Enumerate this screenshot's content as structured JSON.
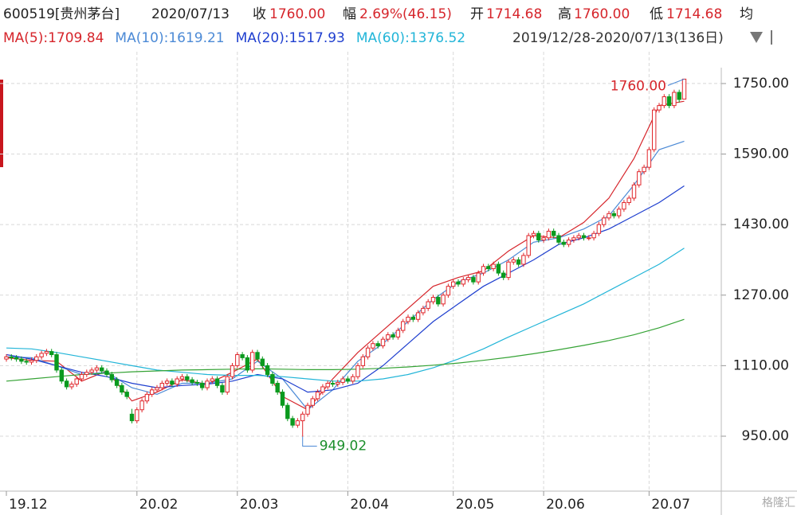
{
  "header": {
    "stock": "600519[贵州茅台]",
    "date": "2020/07/13",
    "close_label": "收",
    "close": "1760.00",
    "change_label": "幅",
    "change": "2.69%(46.15)",
    "open_label": "开",
    "open": "1714.68",
    "high_label": "高",
    "high": "1760.00",
    "low_label": "低",
    "low": "1714.68",
    "avg_label": "均"
  },
  "range_text": "2019/12/28-2020/07/13(136日)",
  "watermark": "格隆汇",
  "chart_data": {
    "type": "candlestick",
    "up_color": "#e0262b",
    "down_color": "#0a9a1e",
    "ylim": [
      829,
      1786
    ],
    "yticks": [
      {
        "value": 950,
        "label": "950.00"
      },
      {
        "value": 1110,
        "label": "1110.00"
      },
      {
        "value": 1270,
        "label": "1270.00"
      },
      {
        "value": 1430,
        "label": "1430.00"
      },
      {
        "value": 1590,
        "label": "1590.00"
      },
      {
        "value": 1750,
        "label": "1750.00"
      }
    ],
    "grid": true,
    "categories": [
      "19.12",
      null,
      null,
      null,
      null,
      null,
      null,
      null,
      null,
      null,
      null,
      null,
      null,
      null,
      null,
      null,
      null,
      null,
      null,
      null,
      null,
      null,
      null,
      null,
      null,
      null,
      "20.02",
      null,
      null,
      null,
      null,
      null,
      null,
      null,
      null,
      null,
      null,
      null,
      null,
      null,
      null,
      null,
      null,
      null,
      null,
      null,
      "20.03",
      null,
      null,
      null,
      null,
      null,
      null,
      null,
      null,
      null,
      null,
      null,
      null,
      null,
      null,
      null,
      null,
      null,
      null,
      null,
      null,
      null,
      "20.04",
      null,
      null,
      null,
      null,
      null,
      null,
      null,
      null,
      null,
      null,
      null,
      null,
      null,
      null,
      null,
      null,
      null,
      null,
      null,
      null,
      "20.05",
      null,
      null,
      null,
      null,
      null,
      null,
      null,
      null,
      null,
      null,
      null,
      null,
      null,
      null,
      null,
      null,
      null,
      "20.06",
      null,
      null,
      null,
      null,
      null,
      null,
      null,
      null,
      null,
      null,
      null,
      null,
      null,
      null,
      null,
      null,
      null,
      null,
      null,
      null,
      "20.07",
      null,
      null,
      null,
      null,
      null,
      null,
      null
    ],
    "ohlc": [
      [
        1125,
        1136,
        1119,
        1130
      ],
      [
        1130,
        1136,
        1122,
        1128
      ],
      [
        1128,
        1134,
        1119,
        1125
      ],
      [
        1125,
        1131,
        1114,
        1120
      ],
      [
        1120,
        1126,
        1112,
        1118
      ],
      [
        1118,
        1128,
        1112,
        1122
      ],
      [
        1122,
        1136,
        1116,
        1130
      ],
      [
        1130,
        1144,
        1124,
        1138
      ],
      [
        1138,
        1148,
        1132,
        1142
      ],
      [
        1142,
        1148,
        1129,
        1135
      ],
      [
        1135,
        1141,
        1094,
        1100
      ],
      [
        1100,
        1106,
        1069,
        1075
      ],
      [
        1075,
        1081,
        1056,
        1062
      ],
      [
        1062,
        1074,
        1056,
        1068
      ],
      [
        1068,
        1086,
        1062,
        1080
      ],
      [
        1080,
        1096,
        1074,
        1090
      ],
      [
        1090,
        1101,
        1084,
        1095
      ],
      [
        1095,
        1106,
        1089,
        1100
      ],
      [
        1100,
        1111,
        1094,
        1105
      ],
      [
        1105,
        1111,
        1092,
        1098
      ],
      [
        1098,
        1104,
        1084,
        1090
      ],
      [
        1090,
        1096,
        1072,
        1078
      ],
      [
        1078,
        1084,
        1059,
        1065
      ],
      [
        1065,
        1071,
        1044,
        1050
      ],
      [
        1050,
        1056,
        1034,
        1040
      ],
      [
        1000,
        1012,
        979,
        985
      ],
      [
        985,
        1016,
        979,
        1010
      ],
      [
        1010,
        1036,
        1004,
        1030
      ],
      [
        1030,
        1051,
        1024,
        1045
      ],
      [
        1045,
        1061,
        1039,
        1055
      ],
      [
        1055,
        1066,
        1049,
        1060
      ],
      [
        1060,
        1076,
        1054,
        1070
      ],
      [
        1070,
        1081,
        1064,
        1075
      ],
      [
        1075,
        1081,
        1062,
        1068
      ],
      [
        1068,
        1086,
        1062,
        1080
      ],
      [
        1080,
        1091,
        1074,
        1085
      ],
      [
        1085,
        1091,
        1072,
        1078
      ],
      [
        1078,
        1084,
        1066,
        1072
      ],
      [
        1072,
        1078,
        1064,
        1070
      ],
      [
        1070,
        1076,
        1054,
        1060
      ],
      [
        1060,
        1081,
        1054,
        1075
      ],
      [
        1075,
        1086,
        1069,
        1080
      ],
      [
        1080,
        1086,
        1059,
        1065
      ],
      [
        1065,
        1071,
        1044,
        1050
      ],
      [
        1050,
        1091,
        1044,
        1085
      ],
      [
        1085,
        1116,
        1079,
        1110
      ],
      [
        1110,
        1141,
        1104,
        1135
      ],
      [
        1135,
        1141,
        1122,
        1128
      ],
      [
        1128,
        1134,
        1094,
        1100
      ],
      [
        1100,
        1146,
        1094,
        1140
      ],
      [
        1140,
        1146,
        1119,
        1125
      ],
      [
        1125,
        1131,
        1104,
        1110
      ],
      [
        1110,
        1116,
        1084,
        1090
      ],
      [
        1090,
        1096,
        1064,
        1070
      ],
      [
        1070,
        1076,
        1044,
        1050
      ],
      [
        1050,
        1056,
        1014,
        1020
      ],
      [
        1020,
        1026,
        984,
        990
      ],
      [
        990,
        996,
        969,
        975
      ],
      [
        975,
        991,
        969,
        985
      ],
      [
        985,
        1006,
        949.02,
        1000
      ],
      [
        1000,
        1026,
        994,
        1020
      ],
      [
        1020,
        1041,
        1014,
        1035
      ],
      [
        1035,
        1056,
        1029,
        1050
      ],
      [
        1050,
        1068,
        1044,
        1062
      ],
      [
        1062,
        1076,
        1056,
        1070
      ],
      [
        1070,
        1076,
        1062,
        1068
      ],
      [
        1068,
        1078,
        1062,
        1072
      ],
      [
        1072,
        1086,
        1066,
        1080
      ],
      [
        1080,
        1086,
        1069,
        1075
      ],
      [
        1075,
        1091,
        1069,
        1085
      ],
      [
        1085,
        1116,
        1079,
        1110
      ],
      [
        1110,
        1136,
        1104,
        1130
      ],
      [
        1130,
        1156,
        1124,
        1150
      ],
      [
        1150,
        1166,
        1144,
        1160
      ],
      [
        1160,
        1166,
        1149,
        1155
      ],
      [
        1155,
        1176,
        1149,
        1170
      ],
      [
        1170,
        1186,
        1164,
        1180
      ],
      [
        1180,
        1186,
        1169,
        1175
      ],
      [
        1175,
        1196,
        1169,
        1190
      ],
      [
        1190,
        1216,
        1184,
        1210
      ],
      [
        1210,
        1226,
        1204,
        1220
      ],
      [
        1220,
        1226,
        1209,
        1215
      ],
      [
        1215,
        1236,
        1209,
        1230
      ],
      [
        1230,
        1246,
        1224,
        1240
      ],
      [
        1240,
        1261,
        1234,
        1255
      ],
      [
        1255,
        1271,
        1249,
        1265
      ],
      [
        1265,
        1271,
        1244,
        1250
      ],
      [
        1250,
        1276,
        1244,
        1270
      ],
      [
        1270,
        1296,
        1264,
        1290
      ],
      [
        1290,
        1306,
        1284,
        1300
      ],
      [
        1300,
        1306,
        1289,
        1295
      ],
      [
        1295,
        1311,
        1289,
        1305
      ],
      [
        1305,
        1316,
        1299,
        1310
      ],
      [
        1310,
        1316,
        1294,
        1300
      ],
      [
        1300,
        1326,
        1294,
        1320
      ],
      [
        1320,
        1341,
        1314,
        1335
      ],
      [
        1335,
        1341,
        1324,
        1330
      ],
      [
        1330,
        1346,
        1324,
        1340
      ],
      [
        1340,
        1346,
        1314,
        1320
      ],
      [
        1320,
        1326,
        1304,
        1310
      ],
      [
        1310,
        1351,
        1304,
        1345
      ],
      [
        1345,
        1356,
        1339,
        1350
      ],
      [
        1350,
        1356,
        1334,
        1340
      ],
      [
        1340,
        1366,
        1334,
        1360
      ],
      [
        1360,
        1411,
        1354,
        1405
      ],
      [
        1405,
        1416,
        1399,
        1410
      ],
      [
        1410,
        1416,
        1389,
        1395
      ],
      [
        1395,
        1406,
        1389,
        1400
      ],
      [
        1400,
        1421,
        1394,
        1415
      ],
      [
        1415,
        1421,
        1399,
        1405
      ],
      [
        1405,
        1411,
        1384,
        1390
      ],
      [
        1390,
        1396,
        1379,
        1385
      ],
      [
        1385,
        1401,
        1379,
        1395
      ],
      [
        1395,
        1406,
        1389,
        1400
      ],
      [
        1400,
        1411,
        1394,
        1405
      ],
      [
        1405,
        1411,
        1394,
        1400
      ],
      [
        1400,
        1406,
        1394,
        1400
      ],
      [
        1400,
        1416,
        1394,
        1410
      ],
      [
        1410,
        1436,
        1404,
        1430
      ],
      [
        1430,
        1451,
        1424,
        1445
      ],
      [
        1445,
        1461,
        1439,
        1455
      ],
      [
        1455,
        1461,
        1444,
        1450
      ],
      [
        1450,
        1471,
        1444,
        1465
      ],
      [
        1465,
        1486,
        1459,
        1480
      ],
      [
        1480,
        1496,
        1474,
        1490
      ],
      [
        1490,
        1526,
        1484,
        1520
      ],
      [
        1520,
        1556,
        1514,
        1550
      ],
      [
        1550,
        1566,
        1544,
        1560
      ],
      [
        1560,
        1606,
        1554,
        1600
      ],
      [
        1600,
        1696,
        1594,
        1690
      ],
      [
        1690,
        1706,
        1684,
        1700
      ],
      [
        1700,
        1726,
        1694,
        1720
      ],
      [
        1720,
        1726,
        1694,
        1700
      ],
      [
        1700,
        1736,
        1694,
        1730
      ],
      [
        1730,
        1736,
        1707,
        1713.85
      ],
      [
        1714.68,
        1760,
        1714.68,
        1760
      ]
    ],
    "series": [
      {
        "name": "MA(5):1709.84",
        "color": "#d6252b",
        "x": [
          0,
          5,
          10,
          15,
          20,
          25,
          30,
          35,
          40,
          45,
          50,
          55,
          60,
          65,
          70,
          75,
          80,
          85,
          90,
          95,
          100,
          105,
          110,
          115,
          120,
          125,
          130,
          135
        ],
        "values": [
          1128,
          1122,
          1120,
          1075,
          1098,
          1030,
          1050,
          1078,
          1068,
          1095,
          1125,
          1040,
          1010,
          1080,
          1140,
          1190,
          1240,
          1290,
          1310,
          1325,
          1370,
          1405,
          1400,
          1435,
          1490,
          1580,
          1700,
          1709.84
        ]
      },
      {
        "name": "MA(10):1619.21",
        "color": "#4c8ad6",
        "x": [
          0,
          5,
          10,
          15,
          20,
          25,
          30,
          35,
          40,
          45,
          50,
          55,
          60,
          65,
          70,
          75,
          80,
          85,
          90,
          95,
          100,
          105,
          110,
          115,
          120,
          125,
          130,
          135
        ],
        "values": [
          1130,
          1128,
          1110,
          1090,
          1095,
          1060,
          1045,
          1070,
          1070,
          1080,
          1120,
          1080,
          1010,
          1055,
          1120,
          1160,
          1210,
          1260,
          1300,
          1320,
          1350,
          1390,
          1400,
          1420,
          1450,
          1520,
          1600,
          1619.21
        ]
      },
      {
        "name": "MA(20):1517.93",
        "color": "#1f3fcf",
        "x": [
          0,
          5,
          10,
          15,
          20,
          25,
          30,
          35,
          40,
          45,
          50,
          55,
          60,
          65,
          70,
          75,
          80,
          85,
          90,
          95,
          100,
          105,
          110,
          115,
          120,
          125,
          130,
          135
        ],
        "values": [
          1135,
          1125,
          1110,
          1095,
          1085,
          1070,
          1060,
          1065,
          1068,
          1075,
          1090,
          1080,
          1050,
          1055,
          1070,
          1110,
          1160,
          1210,
          1250,
          1290,
          1320,
          1350,
          1385,
          1400,
          1420,
          1450,
          1480,
          1517.93
        ]
      },
      {
        "name": "MA(60):1376.52",
        "color": "#22b5d8",
        "x": [
          0,
          5,
          10,
          15,
          20,
          25,
          30,
          35,
          40,
          45,
          50,
          55,
          60,
          65,
          70,
          75,
          80,
          85,
          90,
          95,
          100,
          105,
          110,
          115,
          120,
          125,
          130,
          135
        ],
        "values": [
          1150,
          1148,
          1140,
          1130,
          1120,
          1110,
          1100,
          1095,
          1090,
          1088,
          1088,
          1085,
          1080,
          1075,
          1075,
          1080,
          1090,
          1105,
          1125,
          1148,
          1175,
          1200,
          1225,
          1250,
          1280,
          1310,
          1340,
          1376.52
        ]
      },
      {
        "color": "#35a335",
        "x": [
          0,
          5,
          10,
          15,
          20,
          25,
          30,
          35,
          40,
          45,
          50,
          55,
          60,
          65,
          70,
          75,
          80,
          85,
          90,
          95,
          100,
          105,
          110,
          115,
          120,
          125,
          130,
          135
        ],
        "values": [
          1075,
          1080,
          1085,
          1090,
          1093,
          1096,
          1098,
          1100,
          1101,
          1102,
          1103,
          1102,
          1101,
          1101,
          1102,
          1104,
          1107,
          1111,
          1116,
          1122,
          1129,
          1137,
          1146,
          1156,
          1167,
          1180,
          1196,
          1215
        ]
      }
    ],
    "annotations": [
      {
        "text": "1760.00",
        "color": "#d6252b"
      },
      {
        "text": "949.02",
        "color": "#1c8f2c"
      }
    ]
  }
}
